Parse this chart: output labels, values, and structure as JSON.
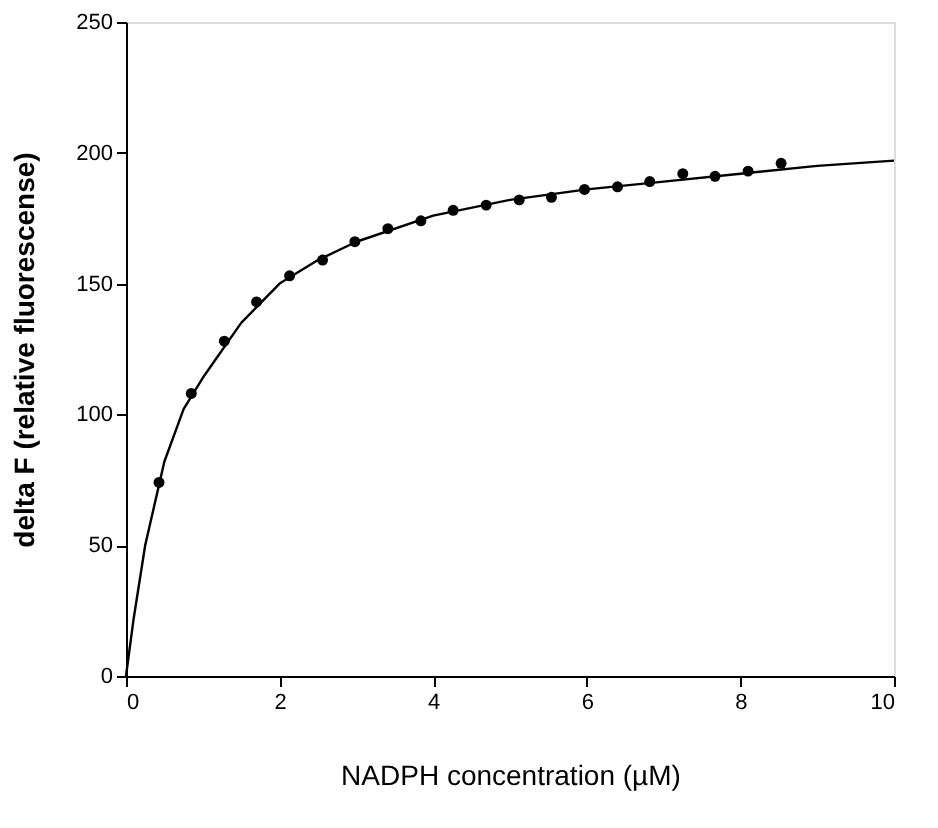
{
  "chart_data": {
    "type": "scatter",
    "xlabel": "NADPH concentration (µM)",
    "ylabel": "delta F (relative fluorescense)",
    "xlim": [
      0,
      10
    ],
    "ylim": [
      0,
      250
    ],
    "xticks": [
      0,
      2,
      4,
      6,
      8,
      10
    ],
    "yticks": [
      0,
      50,
      100,
      150,
      200,
      250
    ],
    "grid": false,
    "series": [
      {
        "type": "scatter",
        "color": "#000000",
        "marker": "circle",
        "x": [
          0.43,
          0.85,
          1.28,
          1.7,
          2.13,
          2.56,
          2.98,
          3.41,
          3.84,
          4.26,
          4.69,
          5.12,
          5.54,
          5.97,
          6.4,
          6.82,
          7.25,
          7.67,
          8.1,
          8.53
        ],
        "values": [
          74,
          108,
          128,
          143,
          153,
          159,
          166,
          171,
          174,
          178,
          180,
          182,
          183,
          186,
          187,
          189,
          192,
          191,
          193,
          196
        ]
      },
      {
        "type": "line",
        "color": "#000000",
        "line_style": "solid",
        "marker": "none",
        "x": [
          0,
          0.1,
          0.25,
          0.5,
          0.75,
          1,
          1.5,
          2,
          2.5,
          3,
          4,
          5,
          6,
          7,
          8,
          9,
          10
        ],
        "values": [
          0,
          22,
          50,
          82,
          102,
          114,
          135,
          150,
          159,
          166,
          176,
          182,
          186,
          189,
          192,
          195,
          197
        ]
      }
    ]
  }
}
